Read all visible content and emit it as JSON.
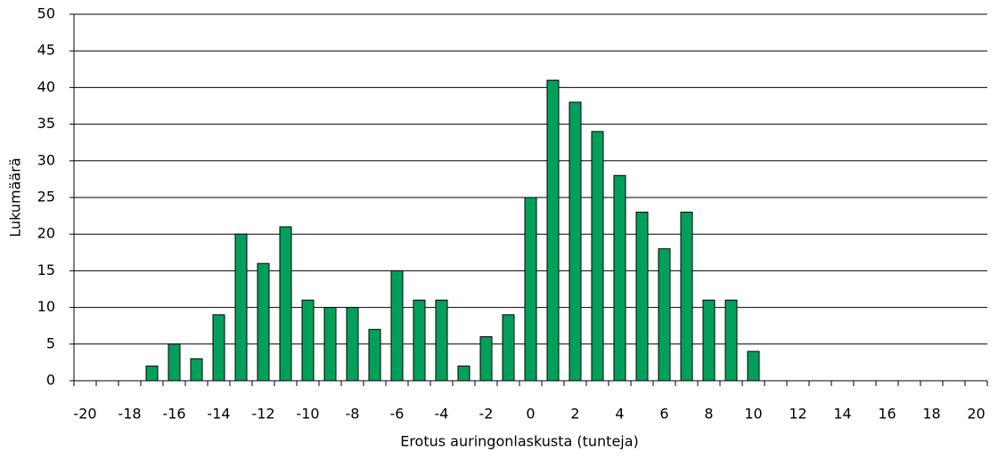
{
  "chart_data": {
    "type": "bar",
    "x_label": "Erotus auringonlaskusta (tunteja)",
    "y_label": "Lukumäärä",
    "categories": [
      -20,
      null,
      -18,
      null,
      -16,
      null,
      -14,
      null,
      -12,
      null,
      -10,
      null,
      -8,
      null,
      -6,
      null,
      -4,
      null,
      -2,
      null,
      0,
      null,
      2,
      null,
      4,
      null,
      6,
      null,
      8,
      null,
      10,
      null,
      12,
      null,
      14,
      null,
      16,
      null,
      18,
      null,
      20
    ],
    "values": [
      0,
      0,
      0,
      2,
      5,
      3,
      9,
      20,
      16,
      21,
      11,
      10,
      10,
      7,
      15,
      11,
      11,
      2,
      6,
      9,
      25,
      41,
      38,
      34,
      28,
      23,
      18,
      23,
      11,
      11,
      4,
      0,
      0,
      0,
      0,
      0,
      0,
      0,
      0,
      0,
      0
    ],
    "color": "#00a05a",
    "ylim": [
      0,
      50
    ],
    "yticks": [
      0,
      5,
      10,
      15,
      20,
      25,
      30,
      35,
      40,
      45,
      50
    ],
    "grid": true
  }
}
